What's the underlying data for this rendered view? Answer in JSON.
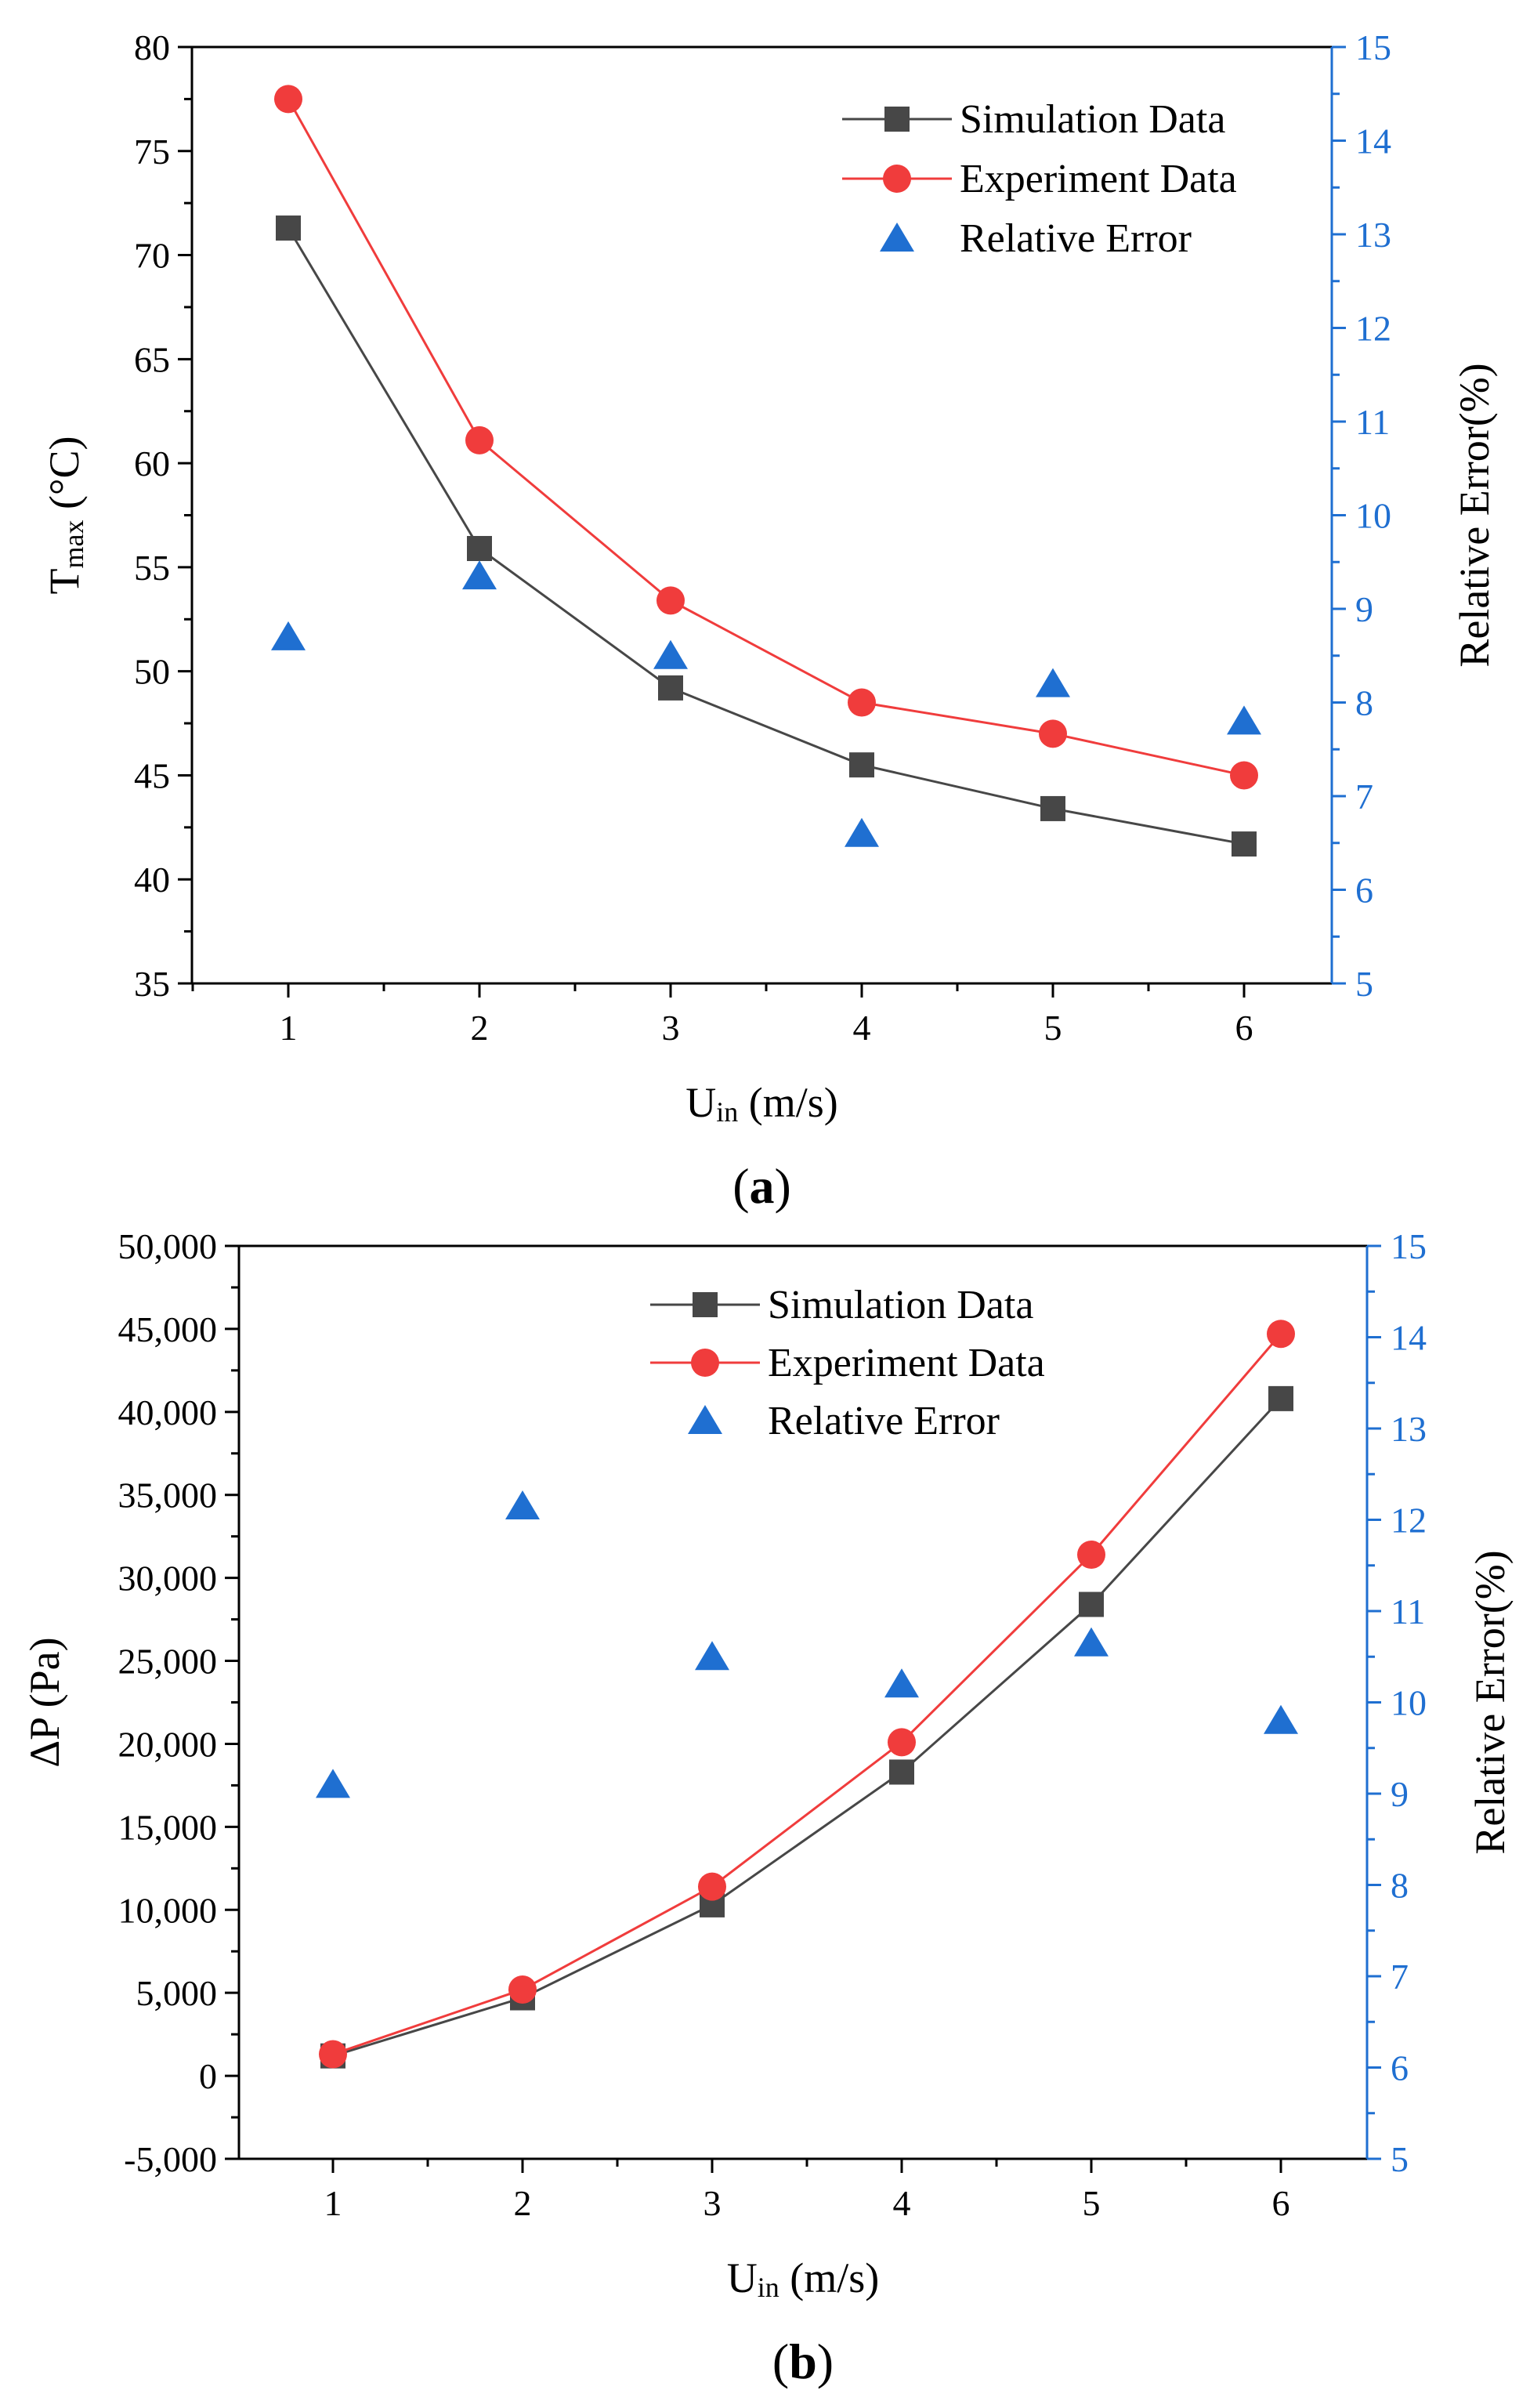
{
  "chart_data": [
    {
      "type": "line",
      "panel_label": "a",
      "x": [
        1,
        2,
        3,
        4,
        5,
        6
      ],
      "x_ticks": [
        "1",
        "2",
        "3",
        "4",
        "5",
        "6"
      ],
      "xlabel": {
        "main": "U",
        "sub": "in",
        "unit": " (m/s)"
      },
      "ylabel": {
        "main": "T",
        "sub": "max",
        "unit": " (°C)"
      },
      "ylabel_right": "Relative Error(%)",
      "ylim": [
        35,
        80
      ],
      "y_ticks": [
        "35",
        "40",
        "45",
        "50",
        "55",
        "60",
        "65",
        "70",
        "75",
        "80"
      ],
      "ylim_right": [
        5,
        15
      ],
      "y_ticks_right": [
        "5",
        "6",
        "7",
        "8",
        "9",
        "10",
        "11",
        "12",
        "13",
        "14",
        "15"
      ],
      "series": [
        {
          "name": "Simulation Data",
          "axis": "left",
          "marker": "square",
          "color": "#474747",
          "values": [
            71.3,
            55.9,
            49.2,
            45.5,
            43.4,
            41.7
          ]
        },
        {
          "name": "Experiment Data",
          "axis": "left",
          "marker": "circle",
          "color": "#f03c3c",
          "values": [
            77.5,
            61.1,
            53.4,
            48.5,
            47.0,
            45.0
          ]
        },
        {
          "name": "Relative Error",
          "axis": "right",
          "marker": "triangle",
          "color": "#1f6fd1",
          "values": [
            8.7,
            9.35,
            8.5,
            6.6,
            8.2,
            7.8
          ]
        }
      ]
    },
    {
      "type": "line",
      "panel_label": "b",
      "x": [
        1,
        2,
        3,
        4,
        5,
        6
      ],
      "x_ticks": [
        "1",
        "2",
        "3",
        "4",
        "5",
        "6"
      ],
      "xlabel": {
        "main": "U",
        "sub": "in",
        "unit": " (m/s)"
      },
      "ylabel": {
        "main": "ΔP (Pa)",
        "sub": "",
        "unit": ""
      },
      "ylabel_right": "Relative Error(%)",
      "ylim": [
        -5000,
        50000
      ],
      "y_ticks": [
        "-5,000",
        "0",
        "5,000",
        "10,000",
        "15,000",
        "20,000",
        "25,000",
        "30,000",
        "35,000",
        "40,000",
        "45,000",
        "50,000"
      ],
      "ylim_right": [
        5,
        15
      ],
      "y_ticks_right": [
        "5",
        "6",
        "7",
        "8",
        "9",
        "10",
        "11",
        "12",
        "13",
        "14",
        "15"
      ],
      "series": [
        {
          "name": "Simulation Data",
          "axis": "left",
          "marker": "square",
          "color": "#474747",
          "values": [
            1200,
            4700,
            10300,
            18300,
            28400,
            40800
          ]
        },
        {
          "name": "Experiment Data",
          "axis": "left",
          "marker": "circle",
          "color": "#f03c3c",
          "values": [
            1300,
            5200,
            11400,
            20100,
            31400,
            44700
          ]
        },
        {
          "name": "Relative Error",
          "axis": "right",
          "marker": "triangle",
          "color": "#1f6fd1",
          "values": [
            9.1,
            12.15,
            10.5,
            10.2,
            10.65,
            9.8
          ]
        }
      ]
    }
  ]
}
